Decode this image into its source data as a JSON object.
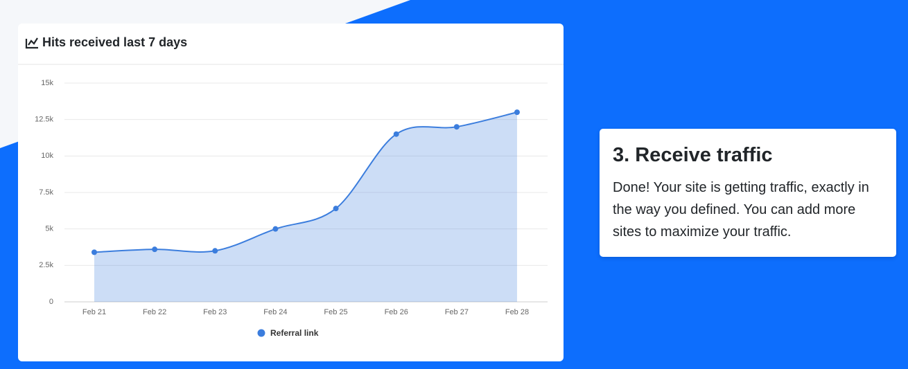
{
  "chart_data": {
    "type": "area",
    "title": "Hits received last 7 days",
    "categories": [
      "Feb 21",
      "Feb 22",
      "Feb 23",
      "Feb 24",
      "Feb 25",
      "Feb 26",
      "Feb 27",
      "Feb 28"
    ],
    "series": [
      {
        "name": "Referral link",
        "color": "#3b7ddd",
        "values": [
          3400,
          3600,
          3500,
          5000,
          6400,
          11500,
          12000,
          13000
        ]
      }
    ],
    "ylim": [
      0,
      15000
    ],
    "yticks": [
      0,
      {
        "value": 2500,
        "label": "2.5k"
      },
      {
        "value": 5000,
        "label": "5k"
      },
      {
        "value": 7500,
        "label": "7.5k"
      },
      {
        "value": 10000,
        "label": "10k"
      },
      {
        "value": 12500,
        "label": "12.5k"
      },
      {
        "value": 15000,
        "label": "15k"
      }
    ],
    "grid": true
  },
  "step_card": {
    "title": "3. Receive traffic",
    "text": "Done! Your site is getting traffic, exactly in the way you defined. You can add more sites to maximize your traffic."
  }
}
